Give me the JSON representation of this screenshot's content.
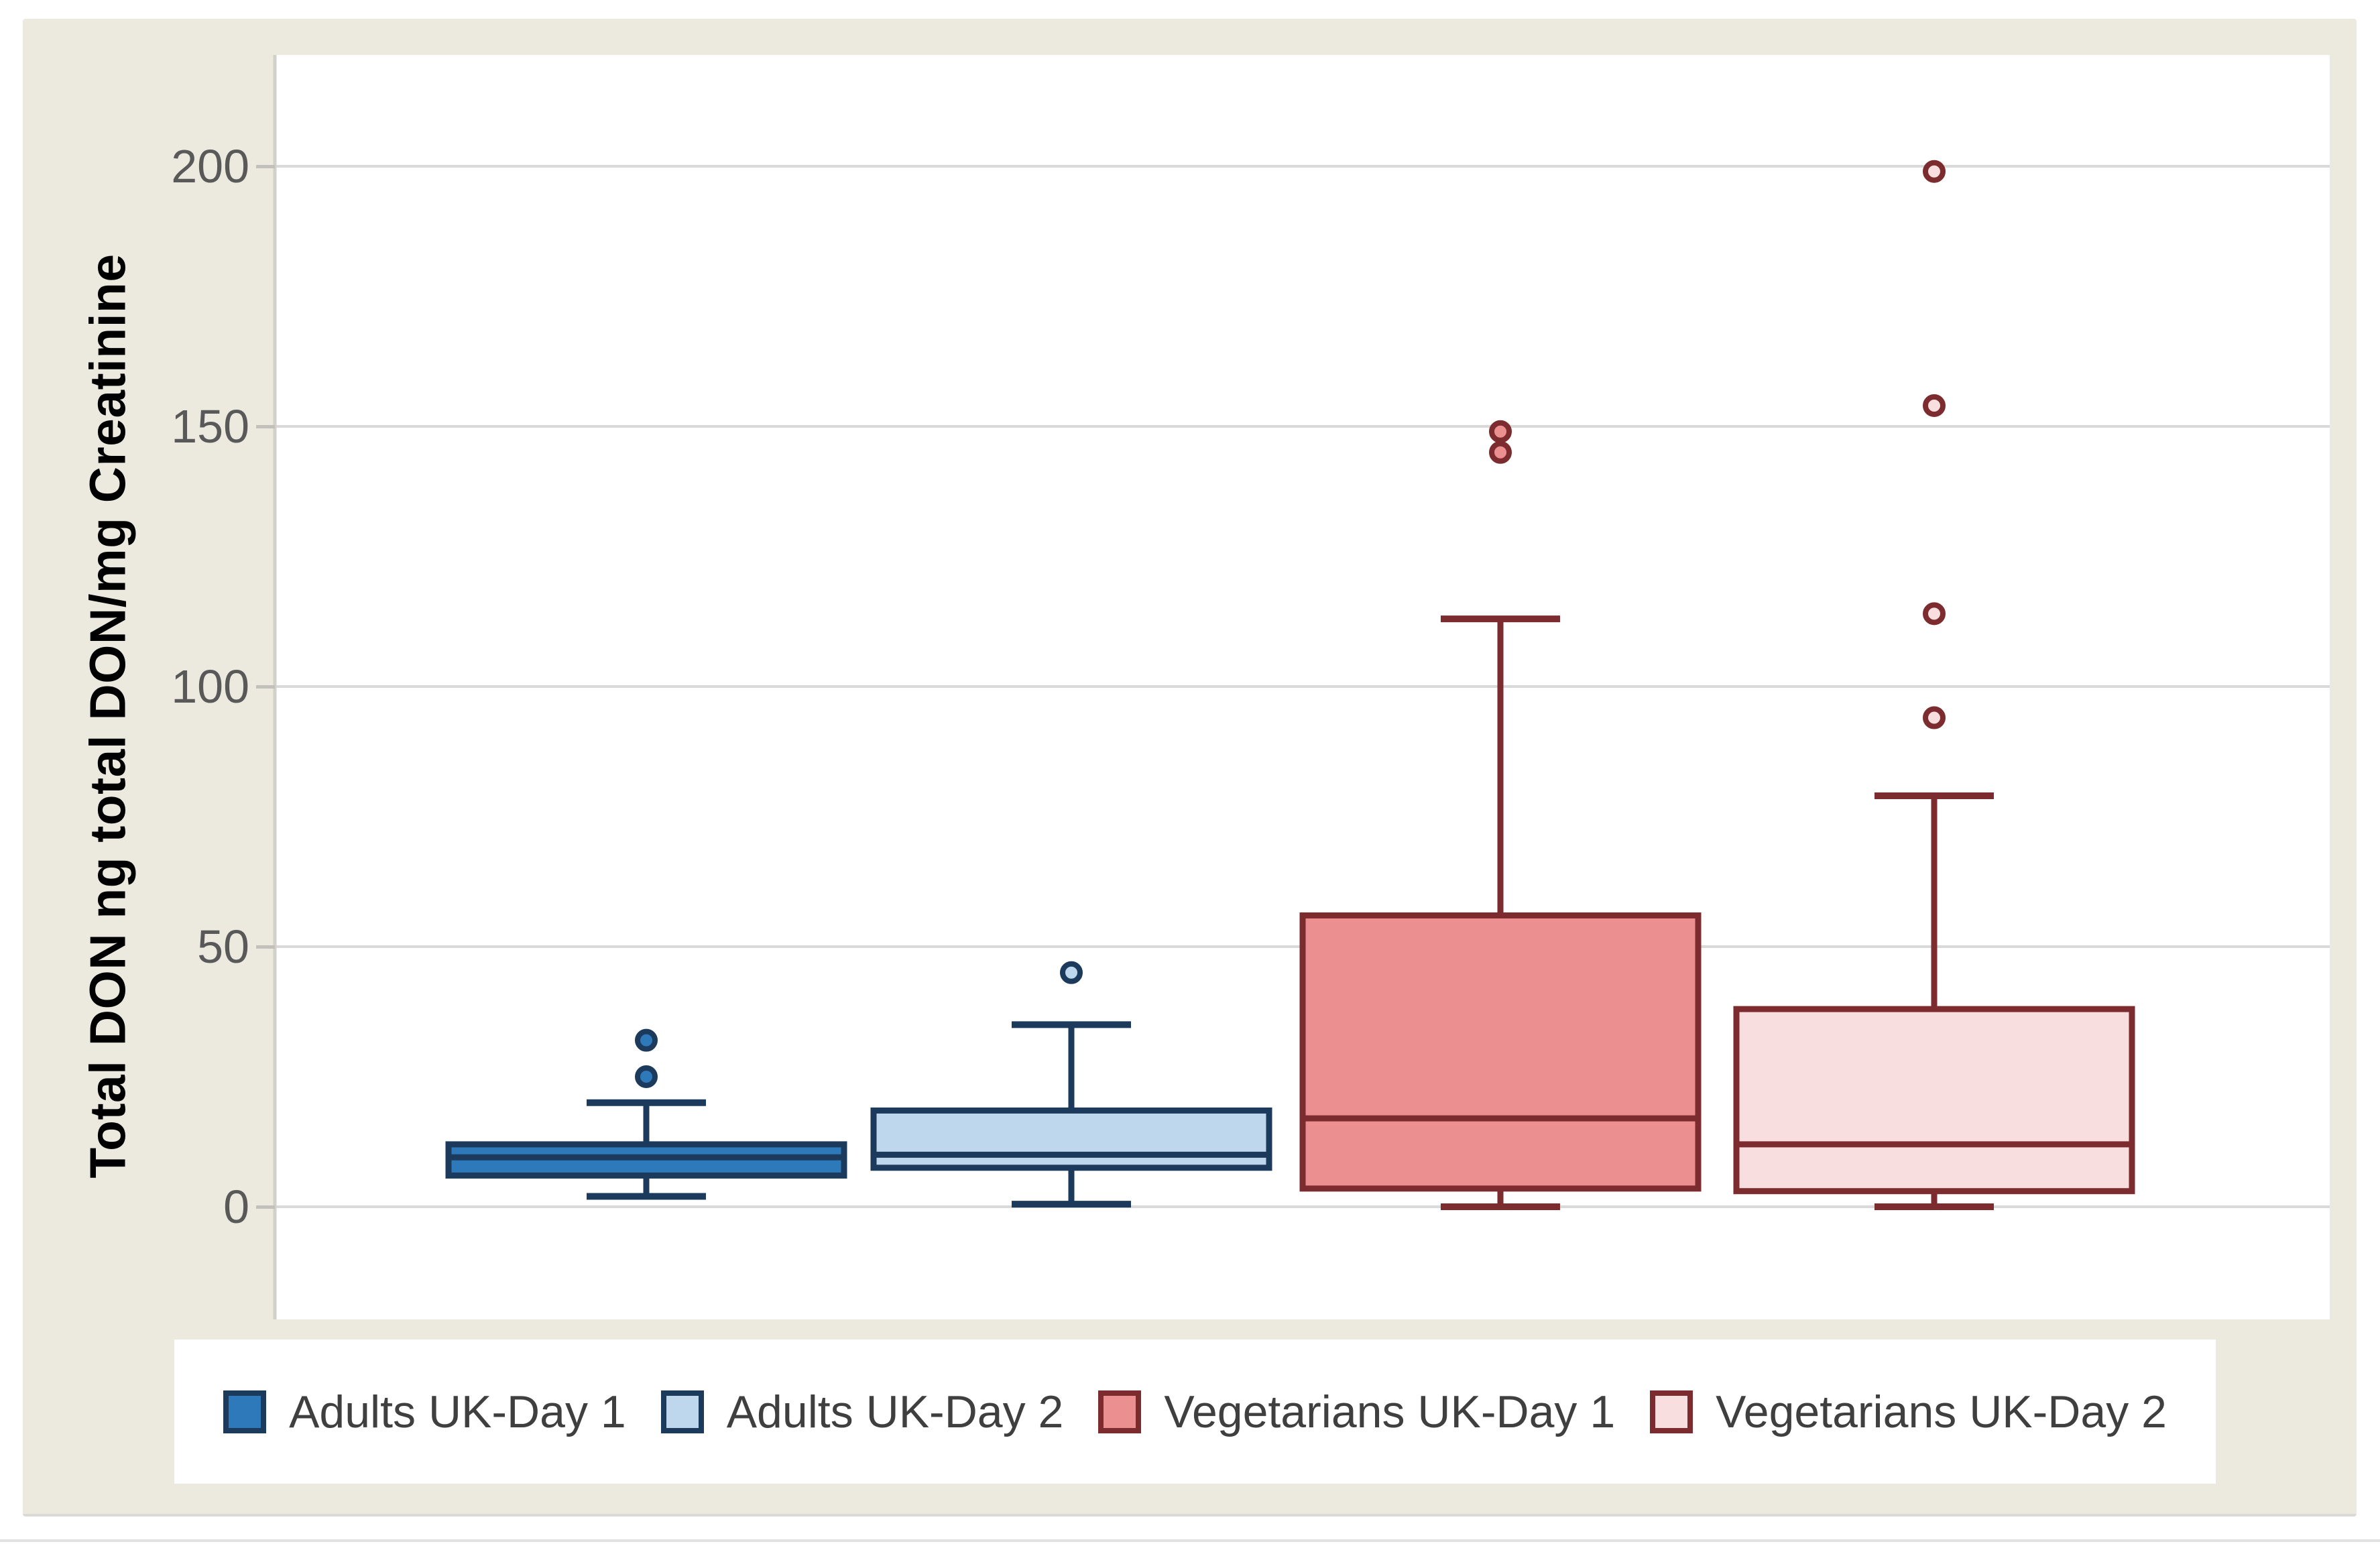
{
  "page": {
    "background": "#FFFFFF"
  },
  "panel": {
    "background": "#ECE9DF"
  },
  "plot": {
    "background": "#FFFFFF",
    "gridline_color": "#D9D9D9",
    "axis_line_color": "#D2D0C8",
    "tick_mark_color": "#C2C0BA",
    "tick_label_color": "#595959"
  },
  "legend": {
    "background": "#FFFFFF",
    "text_color": "#3F3F3F",
    "position": "bottom"
  },
  "chart_data": {
    "type": "boxplot",
    "title": "",
    "xlabel": "",
    "ylabel": "Total DON ng total DON/mg Creatinine",
    "yticks": [
      0,
      50,
      100,
      150,
      200
    ],
    "ylim": [
      -22,
      221
    ],
    "grid": true,
    "legend_position": "bottom",
    "series": [
      {
        "name": "Adults UK-Day 1",
        "fill": "#2E79BA",
        "stroke": "#1B3A5C",
        "min": 2,
        "q1": 6,
        "median": 9.5,
        "q3": 12,
        "whisker_max": 20,
        "outliers": [
          25,
          32
        ]
      },
      {
        "name": "Adults UK-Day 2",
        "fill": "#BFD7EC",
        "stroke": "#1B3A5C",
        "min": 0.5,
        "q1": 7.5,
        "median": 10,
        "q3": 18.5,
        "whisker_max": 35,
        "outliers": [
          45
        ]
      },
      {
        "name": "Vegetarians UK-Day 1",
        "fill": "#EC8F90",
        "stroke": "#7C2B2E",
        "min": 0,
        "q1": 3.5,
        "median": 17,
        "q3": 56,
        "whisker_max": 113,
        "outliers": [
          145,
          149
        ]
      },
      {
        "name": "Vegetarians UK-Day 2",
        "fill": "#F8DEDE",
        "stroke": "#7C2B2E",
        "min": 0,
        "q1": 3,
        "median": 12,
        "q3": 38,
        "whisker_max": 79,
        "outliers": [
          94,
          114,
          154,
          199
        ]
      }
    ]
  }
}
